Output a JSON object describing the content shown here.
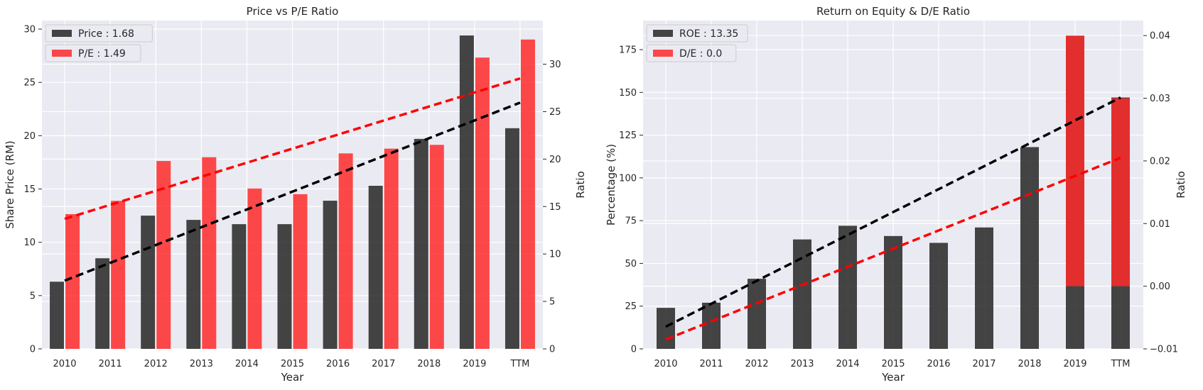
{
  "colors": {
    "background": "#eaeaf2",
    "grid": "#ffffff",
    "dark_bar": "#262626",
    "red_bar": "#ff2a2a",
    "text": "#262626"
  },
  "chart_data": [
    {
      "type": "bar",
      "title": "Price vs P/E Ratio",
      "xlabel": "Year",
      "ylabel": "Share Price (RM)",
      "ylabel_right": "Ratio",
      "categories": [
        "2010",
        "2011",
        "2012",
        "2013",
        "2014",
        "2015",
        "2016",
        "2017",
        "2018",
        "2019",
        "TTM"
      ],
      "ylim": [
        0,
        30.8
      ],
      "ylim_right": [
        0,
        34.6
      ],
      "yticks": [
        0,
        5,
        10,
        15,
        20,
        25,
        30
      ],
      "yticks_right": [
        0,
        5,
        10,
        15,
        20,
        25,
        30
      ],
      "grid": true,
      "legend_position": "top-left",
      "series": [
        {
          "name": "Price : 1.68",
          "axis": "left",
          "color_key": "dark_bar",
          "values": [
            6.3,
            8.5,
            12.5,
            12.1,
            11.7,
            11.7,
            13.9,
            15.3,
            19.7,
            29.4,
            20.7
          ]
        },
        {
          "name": "P/E : 1.49",
          "axis": "right",
          "color_key": "red_bar",
          "values": [
            14.2,
            15.6,
            19.8,
            20.2,
            16.9,
            16.3,
            20.6,
            21.1,
            21.5,
            30.7,
            32.6
          ]
        }
      ],
      "trendlines": [
        {
          "color_key": "dark_bar",
          "axis": "left",
          "x": [
            0,
            10
          ],
          "y": [
            6.4,
            23.1
          ]
        },
        {
          "color_key": "red_bar",
          "axis": "right",
          "x": [
            0,
            10
          ],
          "y": [
            13.7,
            28.5
          ]
        }
      ]
    },
    {
      "type": "bar",
      "title": "Return on Equity & D/E Ratio",
      "xlabel": "Year",
      "ylabel": "Percentage (%)",
      "ylabel_right": "Ratio",
      "categories": [
        "2010",
        "2011",
        "2012",
        "2013",
        "2014",
        "2015",
        "2016",
        "2017",
        "2018",
        "2019",
        "TTM"
      ],
      "ylim": [
        0,
        192
      ],
      "ylim_right": [
        -0.01,
        0.0424
      ],
      "yticks": [
        0,
        25,
        50,
        75,
        100,
        125,
        150,
        175
      ],
      "yticks_right": [
        -0.01,
        0.0,
        0.01,
        0.02,
        0.03,
        0.04
      ],
      "yticks_right_labels": [
        "−0.01",
        "0.00",
        "0.01",
        "0.02",
        "0.03",
        "0.04"
      ],
      "grid": true,
      "legend_position": "top-left",
      "series": [
        {
          "name": "ROE : 13.35",
          "axis": "left",
          "color_key": "dark_bar",
          "values": [
            24,
            27,
            41,
            64,
            72,
            66,
            62,
            71,
            118,
            183,
            147
          ]
        },
        {
          "name": "D/E : 0.0",
          "axis": "right",
          "color_key": "red_bar",
          "bar_bottom": 0.0,
          "values": [
            0,
            0,
            0,
            0,
            0,
            0,
            0,
            0,
            0,
            0.04,
            0.03
          ]
        }
      ],
      "trendlines": [
        {
          "color_key": "dark_bar",
          "axis": "left",
          "x": [
            0,
            10
          ],
          "y": [
            13,
            147
          ]
        },
        {
          "color_key": "red_bar",
          "axis": "right",
          "x": [
            0,
            10
          ],
          "y": [
            -0.0085,
            0.0205
          ]
        }
      ]
    }
  ]
}
